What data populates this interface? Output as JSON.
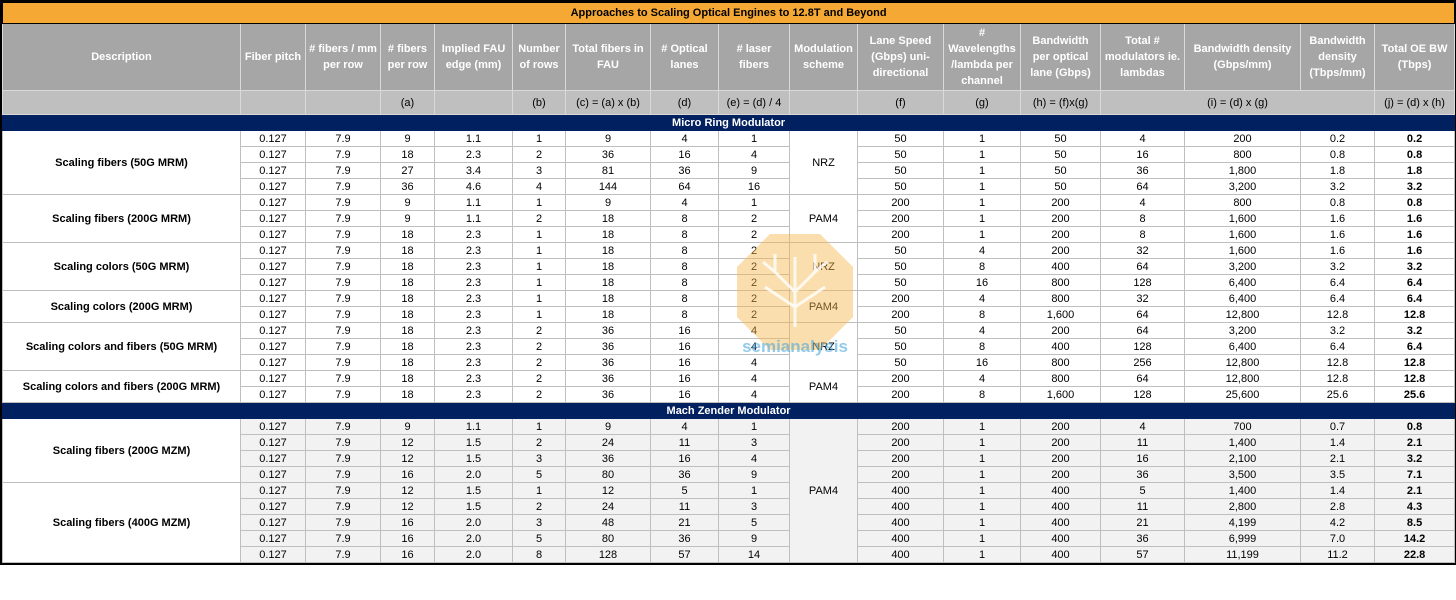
{
  "title": "Approaches to Scaling Optical Engines to 12.8T and Beyond",
  "headers": [
    "Description",
    "Fiber pitch",
    "# fibers / mm per row",
    "# fibers per row",
    "Implied FAU edge (mm)",
    "Number of rows",
    "Total fibers in FAU",
    "# Optical lanes",
    "# laser fibers",
    "Modulation scheme",
    "Lane Speed (Gbps) uni-directional",
    "# Wavelengths /lambda per channel",
    "Bandwidth per optical lane (Gbps)",
    "Total # modulators ie. lambdas",
    "Bandwidth density (Gbps/mm)",
    "Bandwidth density (Tbps/mm)",
    "Total OE BW (Tbps)"
  ],
  "formulas": [
    "(a)",
    "(b)",
    "(c) = (a) x (b)",
    "(d)",
    "(e) = (d) / 4",
    "(f)",
    "(g)",
    "(h) = (f)x(g)",
    "(i) = (d) x (g)",
    "(j) = (d) x (h)"
  ],
  "watermark": "semianalysis",
  "sections": [
    {
      "title": "Micro Ring Modulator",
      "groups": [
        {
          "description": "Scaling fibers (50G MRM)",
          "modulation": "NRZ",
          "rows": [
            [
              "0.127",
              "7.9",
              "9",
              "1.1",
              "1",
              "9",
              "4",
              "1",
              "50",
              "1",
              "50",
              "4",
              "200",
              "0.2",
              "0.2"
            ],
            [
              "0.127",
              "7.9",
              "18",
              "2.3",
              "2",
              "36",
              "16",
              "4",
              "50",
              "1",
              "50",
              "16",
              "800",
              "0.8",
              "0.8"
            ],
            [
              "0.127",
              "7.9",
              "27",
              "3.4",
              "3",
              "81",
              "36",
              "9",
              "50",
              "1",
              "50",
              "36",
              "1,800",
              "1.8",
              "1.8"
            ],
            [
              "0.127",
              "7.9",
              "36",
              "4.6",
              "4",
              "144",
              "64",
              "16",
              "50",
              "1",
              "50",
              "64",
              "3,200",
              "3.2",
              "3.2"
            ]
          ]
        },
        {
          "description": "Scaling fibers (200G MRM)",
          "modulation": "PAM4",
          "rows": [
            [
              "0.127",
              "7.9",
              "9",
              "1.1",
              "1",
              "9",
              "4",
              "1",
              "200",
              "1",
              "200",
              "4",
              "800",
              "0.8",
              "0.8"
            ],
            [
              "0.127",
              "7.9",
              "9",
              "1.1",
              "2",
              "18",
              "8",
              "2",
              "200",
              "1",
              "200",
              "8",
              "1,600",
              "1.6",
              "1.6"
            ],
            [
              "0.127",
              "7.9",
              "18",
              "2.3",
              "1",
              "18",
              "8",
              "2",
              "200",
              "1",
              "200",
              "8",
              "1,600",
              "1.6",
              "1.6"
            ]
          ]
        },
        {
          "description": "Scaling colors (50G MRM)",
          "modulation": "NRZ",
          "rows": [
            [
              "0.127",
              "7.9",
              "18",
              "2.3",
              "1",
              "18",
              "8",
              "2",
              "50",
              "4",
              "200",
              "32",
              "1,600",
              "1.6",
              "1.6"
            ],
            [
              "0.127",
              "7.9",
              "18",
              "2.3",
              "1",
              "18",
              "8",
              "2",
              "50",
              "8",
              "400",
              "64",
              "3,200",
              "3.2",
              "3.2"
            ],
            [
              "0.127",
              "7.9",
              "18",
              "2.3",
              "1",
              "18",
              "8",
              "2",
              "50",
              "16",
              "800",
              "128",
              "6,400",
              "6.4",
              "6.4"
            ]
          ]
        },
        {
          "description": "Scaling colors (200G MRM)",
          "modulation": "PAM4",
          "rows": [
            [
              "0.127",
              "7.9",
              "18",
              "2.3",
              "1",
              "18",
              "8",
              "2",
              "200",
              "4",
              "800",
              "32",
              "6,400",
              "6.4",
              "6.4"
            ],
            [
              "0.127",
              "7.9",
              "18",
              "2.3",
              "1",
              "18",
              "8",
              "2",
              "200",
              "8",
              "1,600",
              "64",
              "12,800",
              "12.8",
              "12.8"
            ]
          ]
        },
        {
          "description": "Scaling colors and fibers (50G MRM)",
          "modulation": "NRZ",
          "rows": [
            [
              "0.127",
              "7.9",
              "18",
              "2.3",
              "2",
              "36",
              "16",
              "4",
              "50",
              "4",
              "200",
              "64",
              "3,200",
              "3.2",
              "3.2"
            ],
            [
              "0.127",
              "7.9",
              "18",
              "2.3",
              "2",
              "36",
              "16",
              "4",
              "50",
              "8",
              "400",
              "128",
              "6,400",
              "6.4",
              "6.4"
            ],
            [
              "0.127",
              "7.9",
              "18",
              "2.3",
              "2",
              "36",
              "16",
              "4",
              "50",
              "16",
              "800",
              "256",
              "12,800",
              "12.8",
              "12.8"
            ]
          ]
        },
        {
          "description": "Scaling colors and fibers (200G MRM)",
          "modulation": "PAM4",
          "rows": [
            [
              "0.127",
              "7.9",
              "18",
              "2.3",
              "2",
              "36",
              "16",
              "4",
              "200",
              "4",
              "800",
              "64",
              "12,800",
              "12.8",
              "12.8"
            ],
            [
              "0.127",
              "7.9",
              "18",
              "2.3",
              "2",
              "36",
              "16",
              "4",
              "200",
              "8",
              "1,600",
              "128",
              "25,600",
              "25.6",
              "25.6"
            ]
          ]
        }
      ]
    },
    {
      "title": "Mach Zender Modulator",
      "modulation": "PAM4",
      "groups": [
        {
          "description": "Scaling fibers (200G MZM)",
          "rows": [
            [
              "0.127",
              "7.9",
              "9",
              "1.1",
              "1",
              "9",
              "4",
              "1",
              "200",
              "1",
              "200",
              "4",
              "700",
              "0.7",
              "0.8"
            ],
            [
              "0.127",
              "7.9",
              "12",
              "1.5",
              "2",
              "24",
              "11",
              "3",
              "200",
              "1",
              "200",
              "11",
              "1,400",
              "1.4",
              "2.1"
            ],
            [
              "0.127",
              "7.9",
              "12",
              "1.5",
              "3",
              "36",
              "16",
              "4",
              "200",
              "1",
              "200",
              "16",
              "2,100",
              "2.1",
              "3.2"
            ],
            [
              "0.127",
              "7.9",
              "16",
              "2.0",
              "5",
              "80",
              "36",
              "9",
              "200",
              "1",
              "200",
              "36",
              "3,500",
              "3.5",
              "7.1"
            ]
          ]
        },
        {
          "description": "Scaling fibers (400G MZM)",
          "rows": [
            [
              "0.127",
              "7.9",
              "12",
              "1.5",
              "1",
              "12",
              "5",
              "1",
              "400",
              "1",
              "400",
              "5",
              "1,400",
              "1.4",
              "2.1"
            ],
            [
              "0.127",
              "7.9",
              "12",
              "1.5",
              "2",
              "24",
              "11",
              "3",
              "400",
              "1",
              "400",
              "11",
              "2,800",
              "2.8",
              "4.3"
            ],
            [
              "0.127",
              "7.9",
              "16",
              "2.0",
              "3",
              "48",
              "21",
              "5",
              "400",
              "1",
              "400",
              "21",
              "4,199",
              "4.2",
              "8.5"
            ],
            [
              "0.127",
              "7.9",
              "16",
              "2.0",
              "5",
              "80",
              "36",
              "9",
              "400",
              "1",
              "400",
              "36",
              "6,999",
              "7.0",
              "14.2"
            ],
            [
              "0.127",
              "7.9",
              "16",
              "2.0",
              "8",
              "128",
              "57",
              "14",
              "400",
              "1",
              "400",
              "57",
              "11,199",
              "11.2",
              "22.8"
            ]
          ]
        }
      ]
    }
  ]
}
